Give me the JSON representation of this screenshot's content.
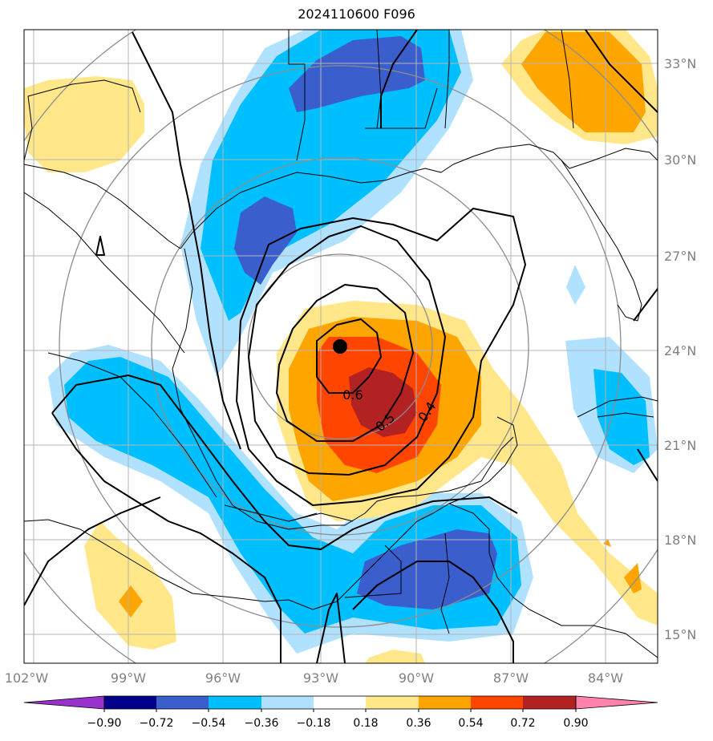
{
  "title": "2024110600 F096",
  "map": {
    "lon_range": [
      -102.5,
      -82.5
    ],
    "lat_range": [
      14.3,
      33.9
    ],
    "lon_ticks": [
      {
        "value": -102,
        "label": "102°W"
      },
      {
        "value": -99,
        "label": "99°W"
      },
      {
        "value": -96,
        "label": "96°W"
      },
      {
        "value": -93,
        "label": "93°W"
      },
      {
        "value": -90,
        "label": "90°W"
      },
      {
        "value": -87,
        "label": "87°W"
      },
      {
        "value": -84,
        "label": "84°W"
      }
    ],
    "lat_ticks": [
      {
        "value": 15,
        "label": "15°N"
      },
      {
        "value": 18,
        "label": "18°N"
      },
      {
        "value": 21,
        "label": "21°N"
      },
      {
        "value": 24,
        "label": "24°N"
      },
      {
        "value": 27,
        "label": "27°N"
      },
      {
        "value": 30,
        "label": "30°N"
      },
      {
        "value": 33,
        "label": "33°N"
      }
    ],
    "center_marker": {
      "lon": -92.3,
      "lat": 24.1
    },
    "contour_labels": [
      {
        "text": "0.6",
        "lon": -91.8,
        "lat": 22.2
      },
      {
        "text": "0.5",
        "lon": -90.9,
        "lat": 21.3
      },
      {
        "text": "0.4",
        "lon": -89.7,
        "lat": 21.6
      }
    ]
  },
  "colorbar": {
    "colors": [
      "#9932cc",
      "#00008b",
      "#3a5fcd",
      "#00bfff",
      "#b0e2ff",
      "#ffffff",
      "#ffe78a",
      "#ffa500",
      "#ff4500",
      "#b22222",
      "#ff82ab"
    ],
    "labels": [
      "−0.90",
      "−0.72",
      "−0.54",
      "−0.36",
      "−0.18",
      "0.18",
      "0.36",
      "0.54",
      "0.72",
      "0.90"
    ]
  }
}
